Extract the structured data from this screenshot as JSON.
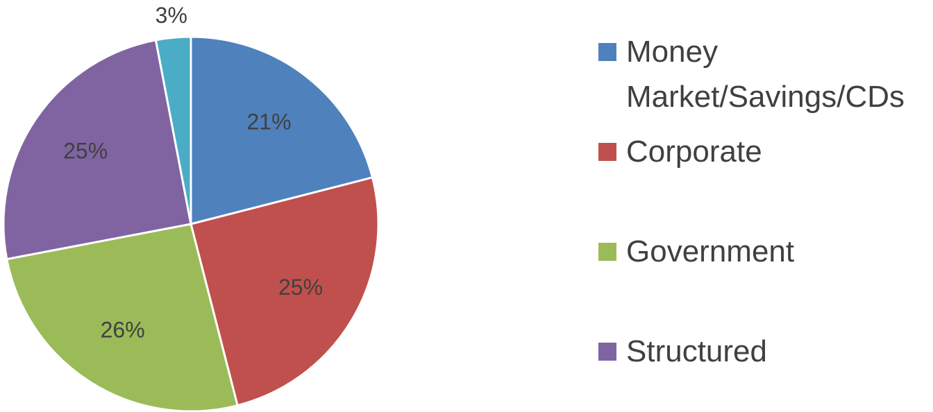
{
  "chart_data": {
    "type": "pie",
    "categories": [
      "Money Market/Savings/CDs",
      "Corporate",
      "Government",
      "Structured",
      null
    ],
    "values": [
      21,
      25,
      26,
      25,
      3
    ],
    "value_labels": [
      "21%",
      "25%",
      "26%",
      "25%",
      "3%"
    ],
    "colors": [
      "#4f81bd",
      "#c0504d",
      "#9bbb59",
      "#8064a2",
      "#4bacc6"
    ],
    "legend": "right"
  }
}
